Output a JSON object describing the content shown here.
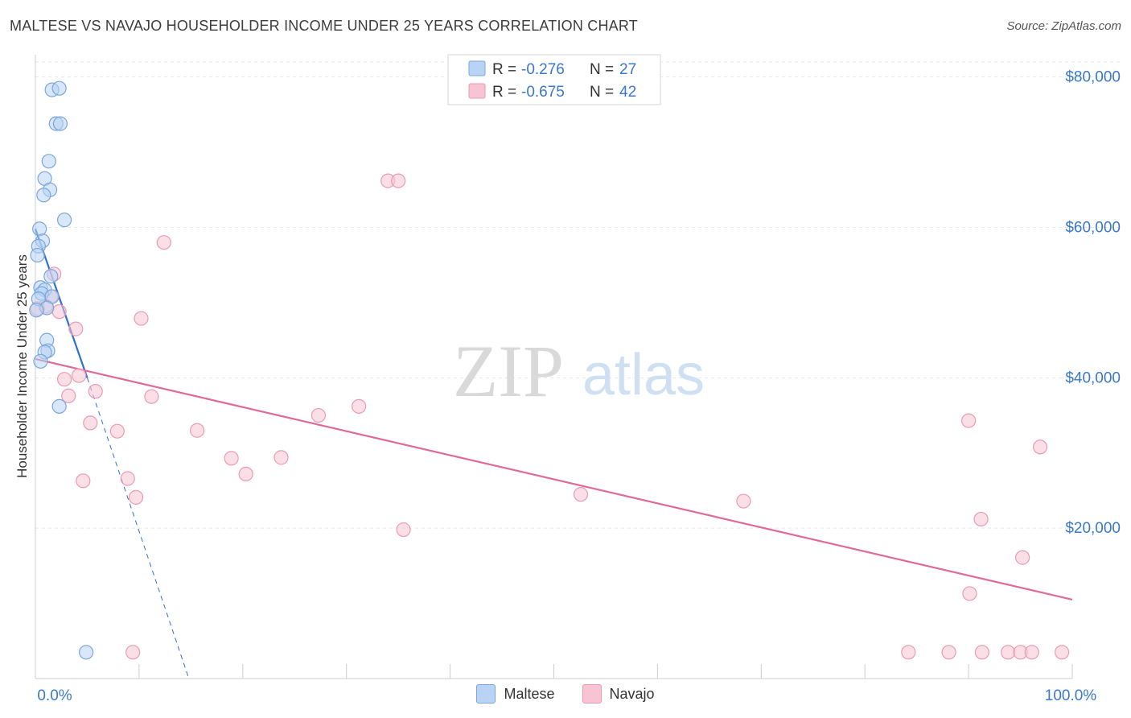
{
  "title": "MALTESE VS NAVAJO HOUSEHOLDER INCOME UNDER 25 YEARS CORRELATION CHART",
  "source": "Source: ZipAtlas.com",
  "watermark": {
    "zip": "ZIP",
    "atlas": "atlas"
  },
  "colors": {
    "maltese_fill": "#b8d3f4",
    "maltese_stroke": "#7aa6dc",
    "maltese_line": "#2f6fd0",
    "navajo_fill": "#f8c4d4",
    "navajo_stroke": "#ea9ab4",
    "navajo_line": "#e0699a",
    "axis_label": "#3a78c9",
    "grid": "#e6e6e6"
  },
  "legend_top": [
    {
      "r_label": "R = ",
      "r_value": "-0.276",
      "n_label": "N = ",
      "n_value": "27"
    },
    {
      "r_label": "R = ",
      "r_value": "-0.675",
      "n_label": "N = ",
      "n_value": "42"
    }
  ],
  "chart_data": {
    "type": "scatter",
    "title": "MALTESE VS NAVAJO HOUSEHOLDER INCOME UNDER 25 YEARS CORRELATION CHART",
    "xlabel": "",
    "ylabel": "Householder Income Under 25 years",
    "xlim": [
      0,
      100
    ],
    "ylim": [
      0,
      82000
    ],
    "x_tick_labels": [
      {
        "value": 0,
        "label": "0.0%"
      },
      {
        "value": 100,
        "label": "100.0%"
      }
    ],
    "y_ticks": [
      {
        "value": 20000,
        "label": "$20,000"
      },
      {
        "value": 40000,
        "label": "$40,000"
      },
      {
        "value": 60000,
        "label": "$60,000"
      },
      {
        "value": 80000,
        "label": "$80,000"
      }
    ],
    "x_minor_ticks": [
      0,
      10,
      20,
      30,
      40,
      50,
      60,
      70,
      80,
      90,
      100
    ],
    "grid": true,
    "series": [
      {
        "name": "Maltese",
        "points": [
          {
            "x": 1.6,
            "y": 78300
          },
          {
            "x": 2.3,
            "y": 78500
          },
          {
            "x": 2.0,
            "y": 73800
          },
          {
            "x": 2.4,
            "y": 73800
          },
          {
            "x": 1.3,
            "y": 68800
          },
          {
            "x": 0.9,
            "y": 66500
          },
          {
            "x": 1.4,
            "y": 65000
          },
          {
            "x": 0.8,
            "y": 64300
          },
          {
            "x": 2.8,
            "y": 61000
          },
          {
            "x": 0.4,
            "y": 59800
          },
          {
            "x": 0.7,
            "y": 58200
          },
          {
            "x": 0.3,
            "y": 57500
          },
          {
            "x": 0.2,
            "y": 56300
          },
          {
            "x": 1.5,
            "y": 53500
          },
          {
            "x": 0.5,
            "y": 52000
          },
          {
            "x": 0.9,
            "y": 51700
          },
          {
            "x": 0.6,
            "y": 51200
          },
          {
            "x": 1.6,
            "y": 50800
          },
          {
            "x": 0.3,
            "y": 50500
          },
          {
            "x": 1.1,
            "y": 49300
          },
          {
            "x": 1.1,
            "y": 45000
          },
          {
            "x": 1.2,
            "y": 43600
          },
          {
            "x": 0.9,
            "y": 43400
          },
          {
            "x": 0.5,
            "y": 42200
          },
          {
            "x": 2.3,
            "y": 36200
          },
          {
            "x": 4.9,
            "y": 3500
          },
          {
            "x": 0.1,
            "y": 49000
          }
        ],
        "trend": {
          "x0": 0,
          "y0": 59800,
          "x1": 5.0,
          "y1": 40000,
          "dash_x1": 14.8,
          "dash_y1": 0
        }
      },
      {
        "name": "Navajo",
        "points": [
          {
            "x": 34.0,
            "y": 66200
          },
          {
            "x": 35.0,
            "y": 66200
          },
          {
            "x": 12.4,
            "y": 58000
          },
          {
            "x": 1.8,
            "y": 53800
          },
          {
            "x": 1.5,
            "y": 50800
          },
          {
            "x": 1.0,
            "y": 49500
          },
          {
            "x": 2.3,
            "y": 48800
          },
          {
            "x": 10.2,
            "y": 47900
          },
          {
            "x": 3.9,
            "y": 46500
          },
          {
            "x": 4.2,
            "y": 40300
          },
          {
            "x": 2.8,
            "y": 39800
          },
          {
            "x": 5.8,
            "y": 38200
          },
          {
            "x": 3.2,
            "y": 37600
          },
          {
            "x": 11.2,
            "y": 37500
          },
          {
            "x": 31.2,
            "y": 36200
          },
          {
            "x": 27.3,
            "y": 35000
          },
          {
            "x": 5.3,
            "y": 34000
          },
          {
            "x": 90.0,
            "y": 34300
          },
          {
            "x": 7.9,
            "y": 32900
          },
          {
            "x": 15.6,
            "y": 33000
          },
          {
            "x": 96.9,
            "y": 30800
          },
          {
            "x": 18.9,
            "y": 29300
          },
          {
            "x": 23.7,
            "y": 29400
          },
          {
            "x": 20.3,
            "y": 27200
          },
          {
            "x": 8.9,
            "y": 26600
          },
          {
            "x": 4.6,
            "y": 26300
          },
          {
            "x": 9.7,
            "y": 24100
          },
          {
            "x": 52.6,
            "y": 24500
          },
          {
            "x": 68.3,
            "y": 23600
          },
          {
            "x": 91.2,
            "y": 21200
          },
          {
            "x": 35.5,
            "y": 19800
          },
          {
            "x": 95.2,
            "y": 16100
          },
          {
            "x": 90.1,
            "y": 11300
          },
          {
            "x": 9.4,
            "y": 3500
          },
          {
            "x": 84.2,
            "y": 3500
          },
          {
            "x": 88.1,
            "y": 3500
          },
          {
            "x": 91.3,
            "y": 3500
          },
          {
            "x": 93.8,
            "y": 3500
          },
          {
            "x": 95.0,
            "y": 3500
          },
          {
            "x": 96.1,
            "y": 3500
          },
          {
            "x": 99.0,
            "y": 3500
          },
          {
            "x": 0.2,
            "y": 49200
          }
        ],
        "trend": {
          "x0": 0,
          "y0": 42500,
          "x1": 100,
          "y1": 10500
        }
      }
    ]
  },
  "legend_bottom": [
    {
      "label": "Maltese"
    },
    {
      "label": "Navajo"
    }
  ]
}
